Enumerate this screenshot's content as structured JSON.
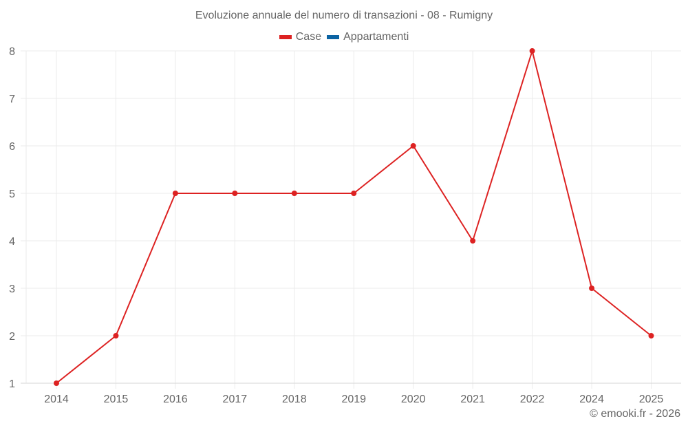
{
  "chart_data": {
    "type": "line",
    "title": "Evoluzione annuale del numero di transazioni - 08 - Rumigny",
    "categories": [
      "2014",
      "2015",
      "2016",
      "2017",
      "2018",
      "2019",
      "2020",
      "2021",
      "2022",
      "2024",
      "2025"
    ],
    "series": [
      {
        "name": "Case",
        "color": "#dd2222",
        "values": [
          1,
          2,
          5,
          5,
          5,
          5,
          6,
          4,
          8,
          3,
          2
        ]
      },
      {
        "name": "Appartamenti",
        "color": "#0b63a3",
        "values": []
      }
    ],
    "xlabel": "",
    "ylabel": "",
    "ylim": [
      1,
      8
    ],
    "yticks": [
      "1",
      "2",
      "3",
      "4",
      "5",
      "6",
      "7",
      "8"
    ],
    "grid": true,
    "legend_position": "top"
  },
  "title": "Evoluzione annuale del numero di transazioni - 08 - Rumigny",
  "legend": [
    {
      "label": "Case",
      "color": "#dd2222"
    },
    {
      "label": "Appartamenti",
      "color": "#0b63a3"
    }
  ],
  "footer": "© emooki.fr - 2026"
}
